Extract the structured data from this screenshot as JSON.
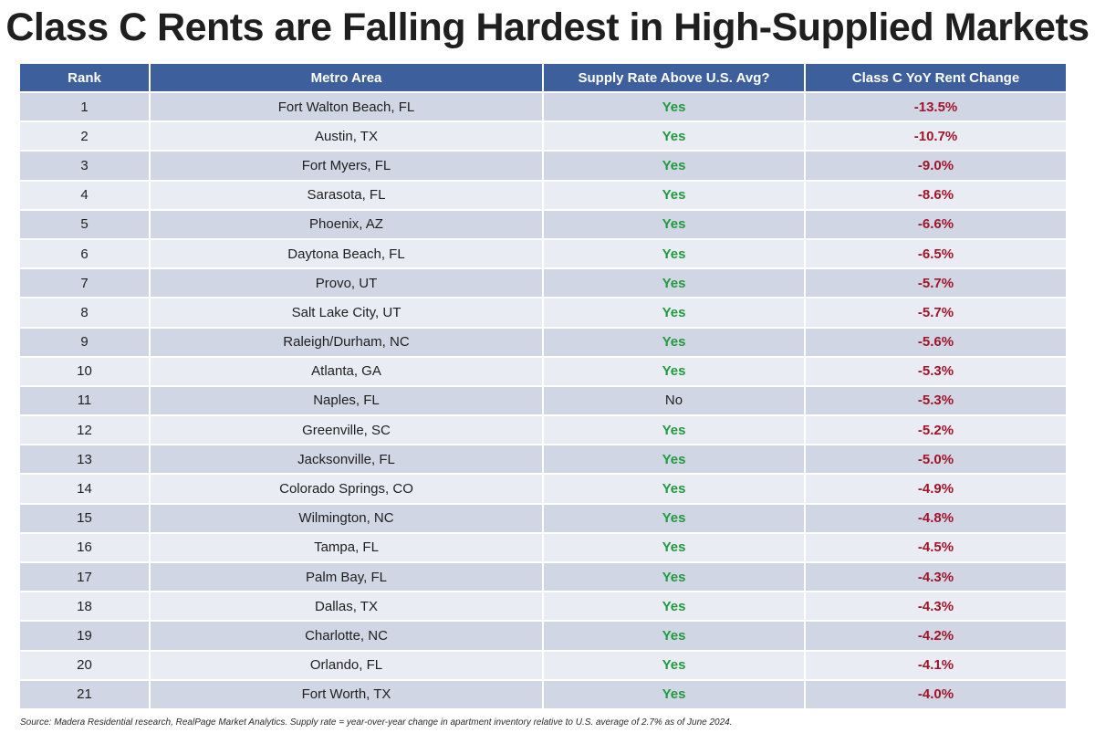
{
  "title": "Class C Rents are Falling Hardest in High-Supplied Markets",
  "headers": {
    "rank": "Rank",
    "metro": "Metro Area",
    "supply": "Supply Rate Above U.S. Avg?",
    "change": "Class C YoY Rent Change"
  },
  "source": "Source: Madera Residential research, RealPage Market Analytics. Supply rate = year-over-year change in apartment inventory relative to U.S. average of 2.7% as of June 2024.",
  "colors": {
    "header_bg": "#3d5f9b",
    "row_odd": "#d0d6e4",
    "row_even": "#e9ecf3",
    "yes_text": "#1f9b3e",
    "change_text": "#a0152a"
  },
  "chart_data": {
    "type": "table",
    "columns": [
      "Rank",
      "Metro Area",
      "Supply Rate Above U.S. Avg?",
      "Class C YoY Rent Change"
    ],
    "rows": [
      {
        "rank": "1",
        "metro": "Fort Walton Beach, FL",
        "supply": "Yes",
        "change": "-13.5%"
      },
      {
        "rank": "2",
        "metro": "Austin, TX",
        "supply": "Yes",
        "change": "-10.7%"
      },
      {
        "rank": "3",
        "metro": "Fort Myers, FL",
        "supply": "Yes",
        "change": "-9.0%"
      },
      {
        "rank": "4",
        "metro": "Sarasota, FL",
        "supply": "Yes",
        "change": "-8.6%"
      },
      {
        "rank": "5",
        "metro": "Phoenix, AZ",
        "supply": "Yes",
        "change": "-6.6%"
      },
      {
        "rank": "6",
        "metro": "Daytona Beach, FL",
        "supply": "Yes",
        "change": "-6.5%"
      },
      {
        "rank": "7",
        "metro": "Provo, UT",
        "supply": "Yes",
        "change": "-5.7%"
      },
      {
        "rank": "8",
        "metro": "Salt Lake City, UT",
        "supply": "Yes",
        "change": "-5.7%"
      },
      {
        "rank": "9",
        "metro": "Raleigh/Durham, NC",
        "supply": "Yes",
        "change": "-5.6%"
      },
      {
        "rank": "10",
        "metro": "Atlanta, GA",
        "supply": "Yes",
        "change": "-5.3%"
      },
      {
        "rank": "11",
        "metro": "Naples, FL",
        "supply": "No",
        "change": "-5.3%"
      },
      {
        "rank": "12",
        "metro": "Greenville, SC",
        "supply": "Yes",
        "change": "-5.2%"
      },
      {
        "rank": "13",
        "metro": "Jacksonville, FL",
        "supply": "Yes",
        "change": "-5.0%"
      },
      {
        "rank": "14",
        "metro": "Colorado Springs, CO",
        "supply": "Yes",
        "change": "-4.9%"
      },
      {
        "rank": "15",
        "metro": "Wilmington, NC",
        "supply": "Yes",
        "change": "-4.8%"
      },
      {
        "rank": "16",
        "metro": "Tampa, FL",
        "supply": "Yes",
        "change": "-4.5%"
      },
      {
        "rank": "17",
        "metro": "Palm Bay, FL",
        "supply": "Yes",
        "change": "-4.3%"
      },
      {
        "rank": "18",
        "metro": "Dallas, TX",
        "supply": "Yes",
        "change": "-4.3%"
      },
      {
        "rank": "19",
        "metro": "Charlotte, NC",
        "supply": "Yes",
        "change": "-4.2%"
      },
      {
        "rank": "20",
        "metro": "Orlando, FL",
        "supply": "Yes",
        "change": "-4.1%"
      },
      {
        "rank": "21",
        "metro": "Fort Worth, TX",
        "supply": "Yes",
        "change": "-4.0%"
      }
    ]
  }
}
